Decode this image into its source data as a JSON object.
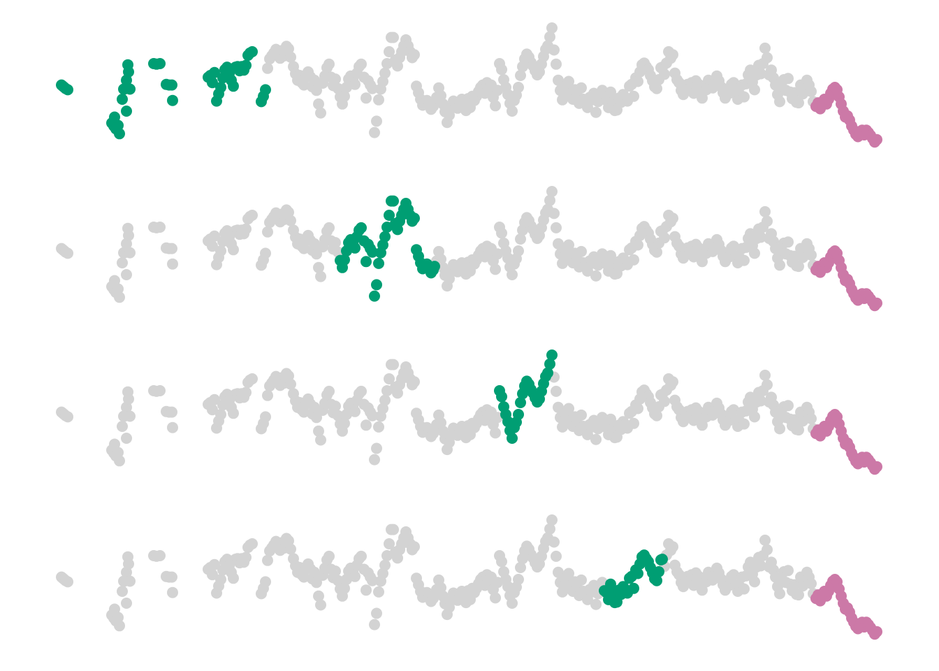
{
  "chart_data": {
    "type": "scatter",
    "title": "",
    "xlabel": "",
    "ylabel": "",
    "axes_visible": false,
    "grid": false,
    "legend": "none",
    "colors": {
      "background": "#d3d3d3",
      "highlight": "#009e73",
      "tail": "#cc79a7"
    },
    "y_range": [
      0,
      200
    ],
    "panels": [
      {
        "name": "panel-1",
        "highlight_range": [
          0,
          380
        ]
      },
      {
        "name": "panel-2",
        "highlight_range": [
          487,
          622
        ]
      },
      {
        "name": "panel-3",
        "highlight_range": [
          713,
          790
        ]
      },
      {
        "name": "panel-4",
        "highlight_range": [
          865,
          948
        ]
      }
    ],
    "tail_range": [
      1168,
      1256
    ],
    "series_points": [
      [
        88,
        96
      ],
      [
        90,
        98
      ],
      [
        92,
        100
      ],
      [
        94,
        102
      ],
      [
        97,
        104
      ],
      [
        160,
        160
      ],
      [
        163,
        165
      ],
      [
        166,
        170
      ],
      [
        169,
        164
      ],
      [
        171,
        178
      ],
      [
        164,
        150
      ],
      [
        175,
        120
      ],
      [
        178,
        103
      ],
      [
        181,
        88
      ],
      [
        184,
        74
      ],
      [
        183,
        62
      ],
      [
        177,
        103
      ],
      [
        186,
        103
      ],
      [
        181,
        140
      ],
      [
        220,
        60
      ],
      [
        224,
        61
      ],
      [
        229,
        60
      ],
      [
        238,
        95
      ],
      [
        242,
        96
      ],
      [
        246,
        96
      ],
      [
        247,
        122
      ],
      [
        298,
        83
      ],
      [
        301,
        80
      ],
      [
        304,
        92
      ],
      [
        307,
        75
      ],
      [
        310,
        123
      ],
      [
        313,
        111
      ],
      [
        316,
        100
      ],
      [
        319,
        84
      ],
      [
        322,
        70
      ],
      [
        325,
        66
      ],
      [
        328,
        77
      ],
      [
        331,
        88
      ],
      [
        334,
        98
      ],
      [
        337,
        66
      ],
      [
        340,
        65
      ],
      [
        343,
        72
      ],
      [
        346,
        65
      ],
      [
        349,
        71
      ],
      [
        352,
        63
      ],
      [
        355,
        46
      ],
      [
        358,
        42
      ],
      [
        361,
        40
      ],
      [
        374,
        124
      ],
      [
        377,
        115
      ],
      [
        380,
        104
      ],
      [
        383,
        68
      ],
      [
        386,
        52
      ],
      [
        389,
        47
      ],
      [
        392,
        42
      ],
      [
        395,
        36
      ],
      [
        398,
        44
      ],
      [
        401,
        51
      ],
      [
        404,
        38
      ],
      [
        407,
        47
      ],
      [
        410,
        31
      ],
      [
        413,
        35
      ],
      [
        416,
        49
      ],
      [
        420,
        65
      ],
      [
        423,
        77
      ],
      [
        426,
        88
      ],
      [
        429,
        80
      ],
      [
        432,
        92
      ],
      [
        435,
        96
      ],
      [
        438,
        82
      ],
      [
        441,
        74
      ],
      [
        444,
        82
      ],
      [
        447,
        99
      ],
      [
        450,
        88
      ],
      [
        453,
        105
      ],
      [
        456,
        128
      ],
      [
        459,
        143
      ],
      [
        462,
        93
      ],
      [
        465,
        81
      ],
      [
        468,
        67
      ],
      [
        471,
        61
      ],
      [
        474,
        83
      ],
      [
        477,
        97
      ],
      [
        480,
        86
      ],
      [
        484,
        102
      ],
      [
        487,
        116
      ],
      [
        490,
        128
      ],
      [
        493,
        115
      ],
      [
        496,
        100
      ],
      [
        499,
        86
      ],
      [
        502,
        81
      ],
      [
        505,
        87
      ],
      [
        508,
        95
      ],
      [
        511,
        76
      ],
      [
        514,
        65
      ],
      [
        517,
        61
      ],
      [
        521,
        83
      ],
      [
        524,
        118
      ],
      [
        527,
        89
      ],
      [
        530,
        96
      ],
      [
        533,
        102
      ],
      [
        536,
        176
      ],
      [
        539,
        157
      ],
      [
        542,
        121
      ],
      [
        545,
        103
      ],
      [
        548,
        90
      ],
      [
        551,
        76
      ],
      [
        554,
        60
      ],
      [
        557,
        40
      ],
      [
        560,
        16
      ],
      [
        563,
        16
      ],
      [
        566,
        54
      ],
      [
        569,
        64
      ],
      [
        572,
        50
      ],
      [
        575,
        40
      ],
      [
        578,
        30
      ],
      [
        581,
        20
      ],
      [
        584,
        30
      ],
      [
        587,
        40
      ],
      [
        590,
        50
      ],
      [
        593,
        45
      ],
      [
        596,
        98
      ],
      [
        599,
        109
      ],
      [
        602,
        120
      ],
      [
        605,
        130
      ],
      [
        608,
        125
      ],
      [
        611,
        122
      ],
      [
        614,
        129
      ],
      [
        617,
        137
      ],
      [
        620,
        132
      ],
      [
        622,
        126
      ],
      [
        625,
        117
      ],
      [
        628,
        101
      ],
      [
        631,
        114
      ],
      [
        634,
        128
      ],
      [
        637,
        141
      ],
      [
        640,
        159
      ],
      [
        643,
        147
      ],
      [
        646,
        135
      ],
      [
        649,
        123
      ],
      [
        652,
        128
      ],
      [
        655,
        135
      ],
      [
        658,
        129
      ],
      [
        661,
        120
      ],
      [
        664,
        128
      ],
      [
        667,
        139
      ],
      [
        670,
        119
      ],
      [
        673,
        134
      ],
      [
        676,
        115
      ],
      [
        679,
        122
      ],
      [
        682,
        115
      ],
      [
        685,
        107
      ],
      [
        688,
        100
      ],
      [
        691,
        96
      ],
      [
        694,
        110
      ],
      [
        697,
        92
      ],
      [
        700,
        103
      ],
      [
        703,
        96
      ],
      [
        706,
        117
      ],
      [
        709,
        131
      ],
      [
        712,
        105
      ],
      [
        715,
        60
      ],
      [
        718,
        70
      ],
      [
        721,
        87
      ],
      [
        724,
        100
      ],
      [
        727,
        112
      ],
      [
        730,
        127
      ],
      [
        733,
        140
      ],
      [
        736,
        122
      ],
      [
        739,
        113
      ],
      [
        742,
        100
      ],
      [
        745,
        80
      ],
      [
        748,
        65
      ],
      [
        751,
        52
      ],
      [
        754,
        44
      ],
      [
        757,
        49
      ],
      [
        760,
        58
      ],
      [
        763,
        64
      ],
      [
        766,
        72
      ],
      [
        769,
        79
      ],
      [
        772,
        74
      ],
      [
        775,
        61
      ],
      [
        778,
        48
      ],
      [
        781,
        36
      ],
      [
        784,
        30
      ],
      [
        787,
        15
      ],
      [
        790,
        0
      ],
      [
        793,
        37
      ],
      [
        796,
        61
      ],
      [
        799,
        88
      ],
      [
        802,
        105
      ],
      [
        805,
        121
      ],
      [
        808,
        110
      ],
      [
        811,
        97
      ],
      [
        814,
        90
      ],
      [
        817,
        110
      ],
      [
        820,
        120
      ],
      [
        823,
        104
      ],
      [
        826,
        114
      ],
      [
        829,
        127
      ],
      [
        832,
        101
      ],
      [
        835,
        120
      ],
      [
        838,
        121
      ],
      [
        841,
        134
      ],
      [
        844,
        117
      ],
      [
        847,
        121
      ],
      [
        850,
        110
      ],
      [
        853,
        142
      ],
      [
        856,
        124
      ],
      [
        859,
        115
      ],
      [
        862,
        105
      ],
      [
        865,
        119
      ],
      [
        868,
        122
      ],
      [
        871,
        134
      ],
      [
        874,
        108
      ],
      [
        877,
        125
      ],
      [
        880,
        139
      ],
      [
        883,
        138
      ],
      [
        886,
        118
      ],
      [
        889,
        125
      ],
      [
        892,
        112
      ],
      [
        895,
        117
      ],
      [
        898,
        123
      ],
      [
        901,
        98
      ],
      [
        904,
        95
      ],
      [
        907,
        115
      ],
      [
        910,
        84
      ],
      [
        913,
        90
      ],
      [
        916,
        74
      ],
      [
        919,
        62
      ],
      [
        922,
        59
      ],
      [
        925,
        65
      ],
      [
        928,
        70
      ],
      [
        931,
        80
      ],
      [
        934,
        89
      ],
      [
        937,
        99
      ],
      [
        940,
        102
      ],
      [
        943,
        87
      ],
      [
        946,
        67
      ],
      [
        948,
        66
      ],
      [
        951,
        78
      ],
      [
        954,
        59
      ],
      [
        957,
        40
      ],
      [
        960,
        51
      ],
      [
        963,
        45
      ],
      [
        966,
        76
      ],
      [
        969,
        87
      ],
      [
        972,
        92
      ],
      [
        975,
        105
      ],
      [
        978,
        112
      ],
      [
        981,
        98
      ],
      [
        984,
        95
      ],
      [
        987,
        103
      ],
      [
        990,
        92
      ],
      [
        993,
        110
      ],
      [
        996,
        89
      ],
      [
        999,
        94
      ],
      [
        1002,
        104
      ],
      [
        1005,
        118
      ],
      [
        1008,
        97
      ],
      [
        1011,
        104
      ],
      [
        1014,
        88
      ],
      [
        1017,
        91
      ],
      [
        1020,
        101
      ],
      [
        1023,
        93
      ],
      [
        1026,
        81
      ],
      [
        1029,
        89
      ],
      [
        1032,
        99
      ],
      [
        1035,
        109
      ],
      [
        1038,
        118
      ],
      [
        1041,
        103
      ],
      [
        1044,
        110
      ],
      [
        1047,
        95
      ],
      [
        1050,
        92
      ],
      [
        1053,
        109
      ],
      [
        1056,
        120
      ],
      [
        1059,
        112
      ],
      [
        1062,
        96
      ],
      [
        1065,
        116
      ],
      [
        1068,
        94
      ],
      [
        1071,
        79
      ],
      [
        1074,
        71
      ],
      [
        1077,
        91
      ],
      [
        1080,
        104
      ],
      [
        1083,
        79
      ],
      [
        1086,
        63
      ],
      [
        1089,
        77
      ],
      [
        1092,
        60
      ],
      [
        1095,
        34
      ],
      [
        1098,
        50
      ],
      [
        1101,
        79
      ],
      [
        1104,
        71
      ],
      [
        1107,
        84
      ],
      [
        1110,
        96
      ],
      [
        1113,
        112
      ],
      [
        1116,
        124
      ],
      [
        1119,
        100
      ],
      [
        1122,
        87
      ],
      [
        1125,
        105
      ],
      [
        1128,
        85
      ],
      [
        1131,
        108
      ],
      [
        1134,
        119
      ],
      [
        1137,
        109
      ],
      [
        1140,
        125
      ],
      [
        1143,
        126
      ],
      [
        1146,
        96
      ],
      [
        1149,
        111
      ],
      [
        1152,
        94
      ],
      [
        1155,
        88
      ],
      [
        1158,
        96
      ],
      [
        1161,
        107
      ],
      [
        1164,
        124
      ],
      [
        1168,
        132
      ],
      [
        1171,
        126
      ],
      [
        1174,
        136
      ],
      [
        1177,
        130
      ],
      [
        1180,
        120
      ],
      [
        1183,
        128
      ],
      [
        1186,
        120
      ],
      [
        1189,
        110
      ],
      [
        1192,
        103
      ],
      [
        1195,
        100
      ],
      [
        1198,
        104
      ],
      [
        1201,
        116
      ],
      [
        1204,
        128
      ],
      [
        1207,
        140
      ],
      [
        1210,
        150
      ],
      [
        1213,
        148
      ],
      [
        1216,
        155
      ],
      [
        1219,
        165
      ],
      [
        1222,
        172
      ],
      [
        1225,
        179
      ],
      [
        1228,
        183
      ],
      [
        1231,
        177
      ],
      [
        1234,
        172
      ],
      [
        1237,
        180
      ],
      [
        1240,
        172
      ],
      [
        1243,
        176
      ],
      [
        1246,
        181
      ],
      [
        1249,
        186
      ],
      [
        1252,
        192
      ],
      [
        1255,
        188
      ]
    ]
  }
}
